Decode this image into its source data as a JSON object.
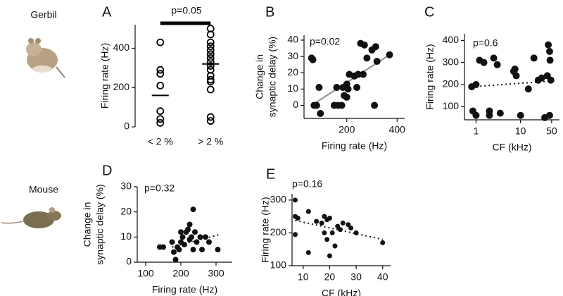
{
  "row_labels": [
    "Gerbil",
    "Mouse"
  ],
  "chart_data": [
    {
      "type": "strip",
      "panel": "A",
      "y_label": [
        "Firing rate (Hz)"
      ],
      "annotation": "p=0.05",
      "categories": [
        "< 2 %",
        "> 2 %"
      ],
      "values": [
        [
          430,
          290,
          270,
          210,
          80,
          40,
          20
        ],
        [
          500,
          470,
          430,
          410,
          390,
          370,
          350,
          330,
          310,
          290,
          260,
          240,
          230,
          190,
          50,
          30
        ]
      ],
      "means": [
        160,
        320
      ],
      "ylim": [
        0,
        520
      ],
      "yticks": [
        0,
        200,
        400
      ],
      "color": "#000000"
    },
    {
      "type": "scatter",
      "panel": "B",
      "y_label": [
        "Change in",
        "synaptic delay (%)"
      ],
      "x_label": "Firing rate (Hz)",
      "annotation": "p=0.02",
      "x": [
        60,
        65,
        70,
        80,
        90,
        95,
        150,
        160,
        165,
        180,
        185,
        190,
        200,
        205,
        210,
        230,
        240,
        245,
        255,
        265,
        270,
        280,
        300,
        310,
        315,
        320,
        370,
        200
      ],
      "values": [
        29,
        28,
        0,
        0,
        11,
        -5,
        0,
        11,
        0,
        0,
        11,
        6,
        5,
        10,
        19,
        18,
        11,
        19,
        38,
        19,
        37,
        29,
        34,
        0,
        36,
        27,
        31,
        13
      ],
      "xlim": [
        30,
        430
      ],
      "xticks": [
        200,
        400
      ],
      "ylim": [
        -8,
        43
      ],
      "yticks": [
        0,
        10,
        20,
        30,
        40
      ],
      "color": "#111111",
      "fit": {
        "x": [
          60,
          380
        ],
        "values": [
          0,
          32
        ],
        "color": "#8c9a9a",
        "dash": false
      }
    },
    {
      "type": "scatter",
      "panel": "C",
      "y_label": [
        "Firing rate (Hz)"
      ],
      "x_label": "CF (kHz)",
      "annotation": "p=0.6",
      "xscale": "log",
      "x": [
        0.8,
        0.85,
        1.0,
        1.0,
        1.2,
        1.5,
        2,
        2,
        2.5,
        3,
        3.5,
        7,
        7.5,
        8,
        10,
        15,
        20,
        25,
        30,
        35,
        40,
        42,
        45,
        45,
        48,
        46
      ],
      "values": [
        190,
        80,
        200,
        60,
        310,
        300,
        80,
        60,
        320,
        290,
        70,
        260,
        270,
        240,
        60,
        180,
        320,
        220,
        230,
        50,
        240,
        380,
        350,
        60,
        220,
        310
      ],
      "xlim": [
        0.55,
        75
      ],
      "xticks": [
        1,
        10,
        50
      ],
      "ylim": [
        40,
        430
      ],
      "yticks": [
        100,
        200,
        300,
        400
      ],
      "color": "#111111",
      "fit": {
        "x": [
          0.8,
          45
        ],
        "values": [
          190,
          215
        ],
        "color": "#111111",
        "dash": true
      }
    },
    {
      "type": "scatter",
      "panel": "D",
      "y_label": [
        "Change in",
        "synaptic delay (%)"
      ],
      "x_label": "Firing rate (Hz)",
      "annotation": "p=0.32",
      "x": [
        140,
        150,
        175,
        180,
        185,
        190,
        195,
        200,
        200,
        205,
        210,
        215,
        220,
        225,
        225,
        230,
        235,
        235,
        240,
        245,
        255,
        260,
        270,
        280,
        305
      ],
      "values": [
        6,
        6,
        8,
        4,
        1,
        6,
        5,
        8,
        12,
        10,
        7,
        12,
        13,
        15,
        9,
        10,
        21,
        5,
        12,
        8,
        10,
        5,
        10,
        8,
        5
      ],
      "xlim": [
        76,
        346
      ],
      "xticks": [
        100,
        200,
        300
      ],
      "ylim": [
        0,
        30
      ],
      "yticks": [
        0,
        10,
        20,
        30
      ],
      "color": "#111111",
      "fit": {
        "x": [
          175,
          310
        ],
        "values": [
          6,
          11
        ],
        "color": "#111111",
        "dash": true
      }
    },
    {
      "type": "scatter",
      "panel": "E",
      "y_label": [
        "Firing rate (Hz)"
      ],
      "x_label": "CF (kHz)",
      "annotation": "p=0.16",
      "x": [
        7,
        7,
        8,
        7,
        12,
        12,
        15,
        17,
        18,
        19,
        19,
        20,
        20,
        21,
        22,
        23,
        24,
        25,
        27,
        28,
        30,
        40,
        18
      ],
      "values": [
        300,
        250,
        245,
        195,
        265,
        140,
        235,
        230,
        250,
        240,
        180,
        245,
        130,
        200,
        160,
        220,
        210,
        230,
        225,
        215,
        200,
        170,
        200
      ],
      "xlim": [
        5.8,
        43
      ],
      "xticks": [
        10,
        20,
        30,
        40
      ],
      "ylim": [
        100,
        319
      ],
      "yticks": [
        100,
        200,
        300
      ],
      "color": "#111111",
      "fit": {
        "x": [
          7,
          40
        ],
        "values": [
          238,
          180
        ],
        "color": "#111111",
        "dash": true
      }
    }
  ]
}
